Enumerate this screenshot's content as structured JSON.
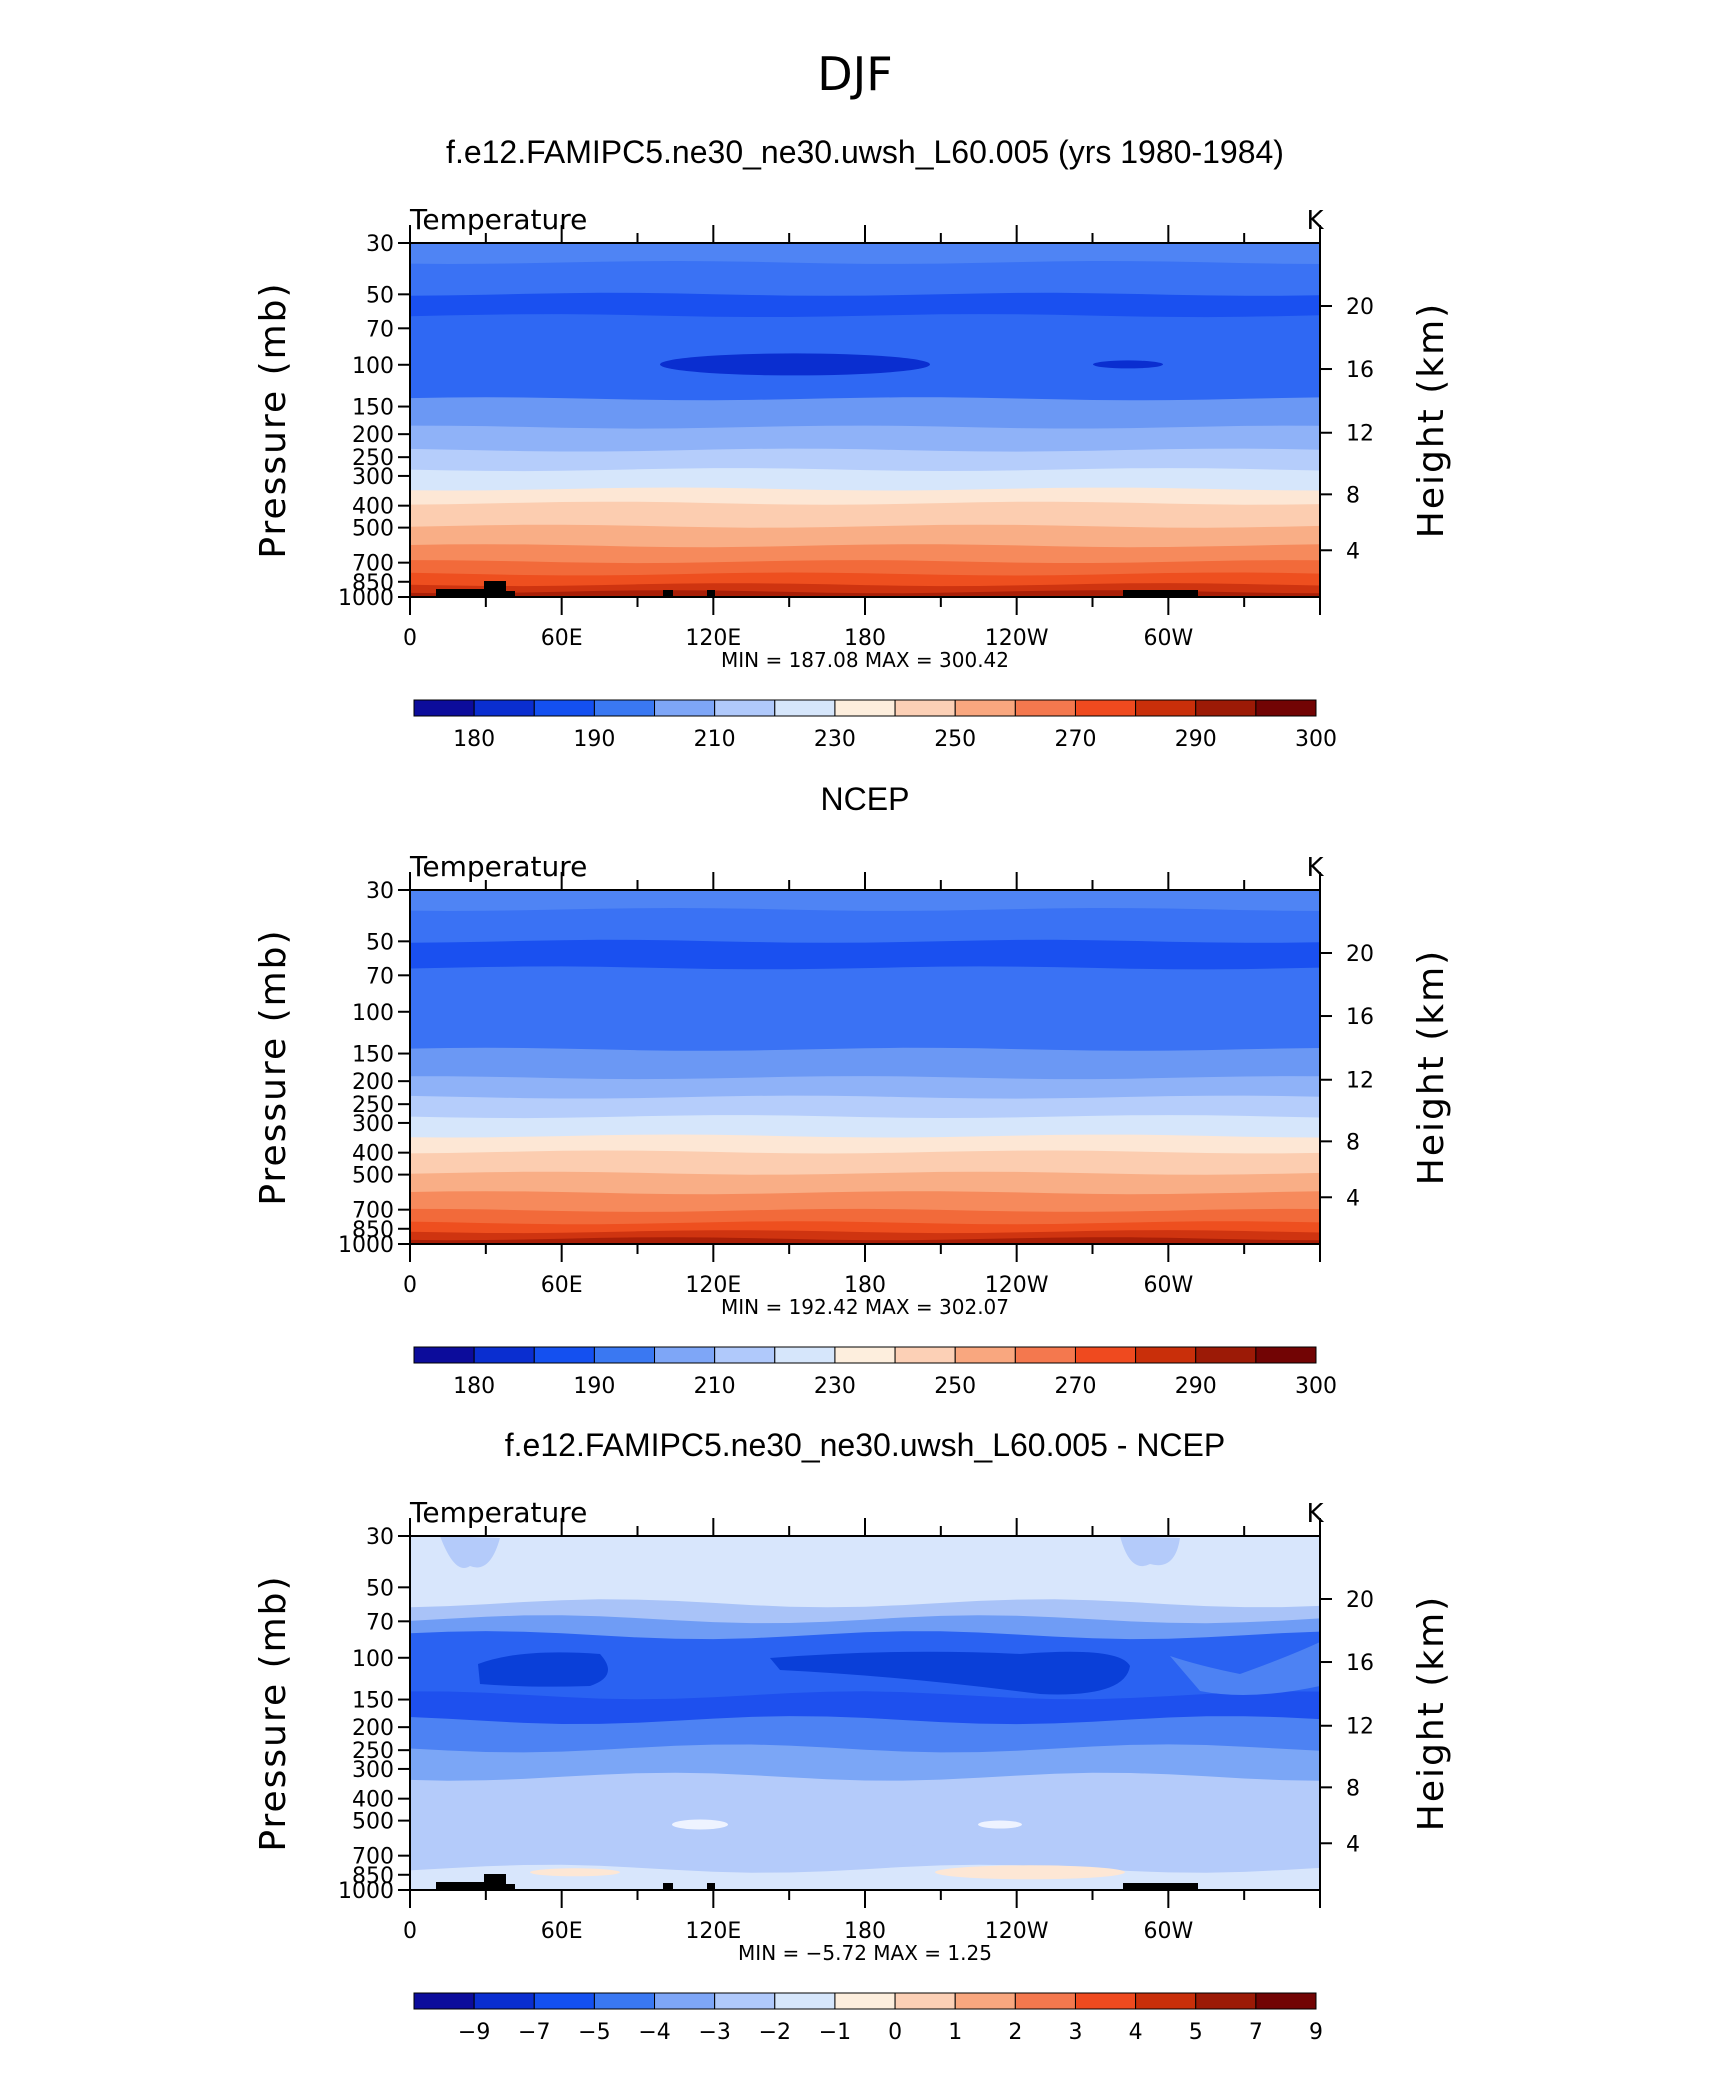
{
  "figure": {
    "title": "DJF"
  },
  "chart_data": [
    {
      "type": "heatmap",
      "title": "f.e12.FAMIPC5.ne30_ne30.uwsh_L60.005 (yrs 1980-1984)",
      "subtitle": "Temperature",
      "units": "K",
      "xlabel": "",
      "ylabel": "Pressure (mb)",
      "ylabel_right": "Height (km)",
      "x_ticks": [
        "0",
        "60E",
        "120E",
        "180",
        "120W",
        "60W"
      ],
      "y_ticks": [
        "30",
        "50",
        "70",
        "100",
        "150",
        "200",
        "250",
        "300",
        "400",
        "500",
        "700",
        "850",
        "1000"
      ],
      "y_ticks_right": [
        "20",
        "16",
        "12",
        "8",
        "4"
      ],
      "stats": "MIN =  187.08   MAX =  300.42",
      "levels_labeled": [
        "180",
        "190",
        "210",
        "230",
        "250",
        "270",
        "290",
        "300"
      ],
      "colors": [
        "#0c0c9b",
        "#0a2ed0",
        "#1450f0",
        "#3a78f2",
        "#7ea6f7",
        "#b0c9fb",
        "#d6e6fb",
        "#fdeedd",
        "#fcd0b6",
        "#f9a77f",
        "#f4784e",
        "#ef4a1f",
        "#c92f0a",
        "#9c1a06",
        "#720404"
      ],
      "band_colors_top_to_bottom": [
        "#4f84f4",
        "#3a72f4",
        "#1a50f0",
        "#2f68f3",
        "#6b98f4",
        "#8fb2f8",
        "#b5cdfb",
        "#d6e6fb",
        "#fde7d5",
        "#fccdb0",
        "#f9ae86",
        "#f68a5c",
        "#f26a3a",
        "#ee4f1f",
        "#cf3410",
        "#a91f07"
      ],
      "notes": "zonally near-uniform; colder core near 100 mb over 120E-120W"
    },
    {
      "type": "heatmap",
      "title": "NCEP",
      "subtitle": "Temperature",
      "units": "K",
      "xlabel": "",
      "ylabel": "Pressure (mb)",
      "ylabel_right": "Height (km)",
      "x_ticks": [
        "0",
        "60E",
        "120E",
        "180",
        "120W",
        "60W"
      ],
      "y_ticks": [
        "30",
        "50",
        "70",
        "100",
        "150",
        "200",
        "250",
        "300",
        "400",
        "500",
        "700",
        "850",
        "1000"
      ],
      "y_ticks_right": [
        "20",
        "16",
        "12",
        "8",
        "4"
      ],
      "stats": "MIN =  192.42   MAX =  302.07",
      "levels_labeled": [
        "180",
        "190",
        "210",
        "230",
        "250",
        "270",
        "290",
        "300"
      ],
      "colors": [
        "#0c0c9b",
        "#0a2ed0",
        "#1450f0",
        "#3a78f2",
        "#7ea6f7",
        "#b0c9fb",
        "#d6e6fb",
        "#fdeedd",
        "#fcd0b6",
        "#f9a77f",
        "#f4784e",
        "#ef4a1f",
        "#c92f0a",
        "#9c1a06",
        "#720404"
      ],
      "band_colors_top_to_bottom": [
        "#4f84f4",
        "#3a72f4",
        "#1a50f0",
        "#3a72f4",
        "#6b98f4",
        "#8fb2f8",
        "#b5cdfb",
        "#d6e6fb",
        "#fde7d5",
        "#fccdb0",
        "#f9ae86",
        "#f68a5c",
        "#f26a3a",
        "#ee4f1f",
        "#cf3410",
        "#a91f07"
      ]
    },
    {
      "type": "heatmap",
      "title": "f.e12.FAMIPC5.ne30_ne30.uwsh_L60.005 - NCEP",
      "subtitle": "Temperature",
      "units": "K",
      "xlabel": "",
      "ylabel": "Pressure (mb)",
      "ylabel_right": "Height (km)",
      "x_ticks": [
        "0",
        "60E",
        "120E",
        "180",
        "120W",
        "60W"
      ],
      "y_ticks": [
        "30",
        "50",
        "70",
        "100",
        "150",
        "200",
        "250",
        "300",
        "400",
        "500",
        "700",
        "850",
        "1000"
      ],
      "y_ticks_right": [
        "20",
        "16",
        "12",
        "8",
        "4"
      ],
      "stats": "MIN =   −5.72   MAX =    1.25",
      "levels_labeled": [
        "−9",
        "−7",
        "−5",
        "−4",
        "−3",
        "−2",
        "−1",
        "0",
        "1",
        "2",
        "3",
        "4",
        "5",
        "7",
        "9"
      ],
      "colors": [
        "#0c0c9b",
        "#0a2ed0",
        "#1450f0",
        "#3a78f2",
        "#7ea6f7",
        "#b0c9fb",
        "#d6e6fb",
        "#fdeedd",
        "#fcd0b6",
        "#f9a77f",
        "#f4784e",
        "#ef4a1f",
        "#c92f0a",
        "#9c1a06",
        "#720404"
      ],
      "band_colors_top_to_bottom": [
        "#d8e6fc",
        "#d8e6fc",
        "#a9c3f8",
        "#6f9cf5",
        "#2a62f2",
        "#1e50ee",
        "#4d82f3",
        "#7ba6f6",
        "#b4cbfa",
        "#b4cbfa",
        "#d8e6fc",
        "#d8e6fc"
      ],
      "notes": "negative bias core (−5 to −7 K) near 100 mb; small positive anomalies near surface"
    }
  ]
}
